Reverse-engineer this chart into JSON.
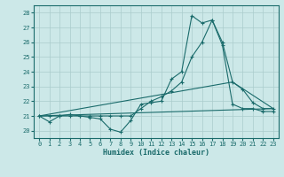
{
  "xlabel": "Humidex (Indice chaleur)",
  "xlim": [
    -0.5,
    23.5
  ],
  "ylim": [
    19.5,
    28.5
  ],
  "yticks": [
    20,
    21,
    22,
    23,
    24,
    25,
    26,
    27,
    28
  ],
  "xticks": [
    0,
    1,
    2,
    3,
    4,
    5,
    6,
    7,
    8,
    9,
    10,
    11,
    12,
    13,
    14,
    15,
    16,
    17,
    18,
    19,
    20,
    21,
    22,
    23
  ],
  "bg_color": "#cce8e8",
  "grid_color": "#aacccc",
  "line_color": "#1a6b6b",
  "curve1_x": [
    0,
    1,
    2,
    3,
    4,
    5,
    6,
    7,
    8,
    9,
    10,
    11,
    12,
    13,
    14,
    15,
    16,
    17,
    18,
    19,
    20,
    21,
    22,
    23
  ],
  "curve1_y": [
    21.0,
    20.6,
    21.0,
    21.1,
    21.0,
    20.9,
    20.8,
    20.1,
    19.9,
    20.7,
    21.8,
    21.9,
    22.0,
    23.5,
    24.0,
    27.8,
    27.3,
    27.5,
    26.0,
    23.3,
    22.8,
    21.9,
    21.5,
    21.5
  ],
  "curve2_x": [
    0,
    1,
    2,
    3,
    4,
    5,
    6,
    7,
    8,
    9,
    10,
    11,
    12,
    13,
    14,
    15,
    16,
    17,
    18,
    19,
    20,
    21,
    22,
    23
  ],
  "curve2_y": [
    21.0,
    21.0,
    21.0,
    21.0,
    21.0,
    21.0,
    21.0,
    21.0,
    21.0,
    21.0,
    21.5,
    22.0,
    22.3,
    22.7,
    23.3,
    25.0,
    26.0,
    27.5,
    25.8,
    21.8,
    21.5,
    21.5,
    21.3,
    21.3
  ],
  "curve3_x": [
    0,
    19,
    23
  ],
  "curve3_y": [
    21.0,
    23.3,
    21.5
  ],
  "curve4_x": [
    0,
    23
  ],
  "curve4_y": [
    21.0,
    21.5
  ]
}
